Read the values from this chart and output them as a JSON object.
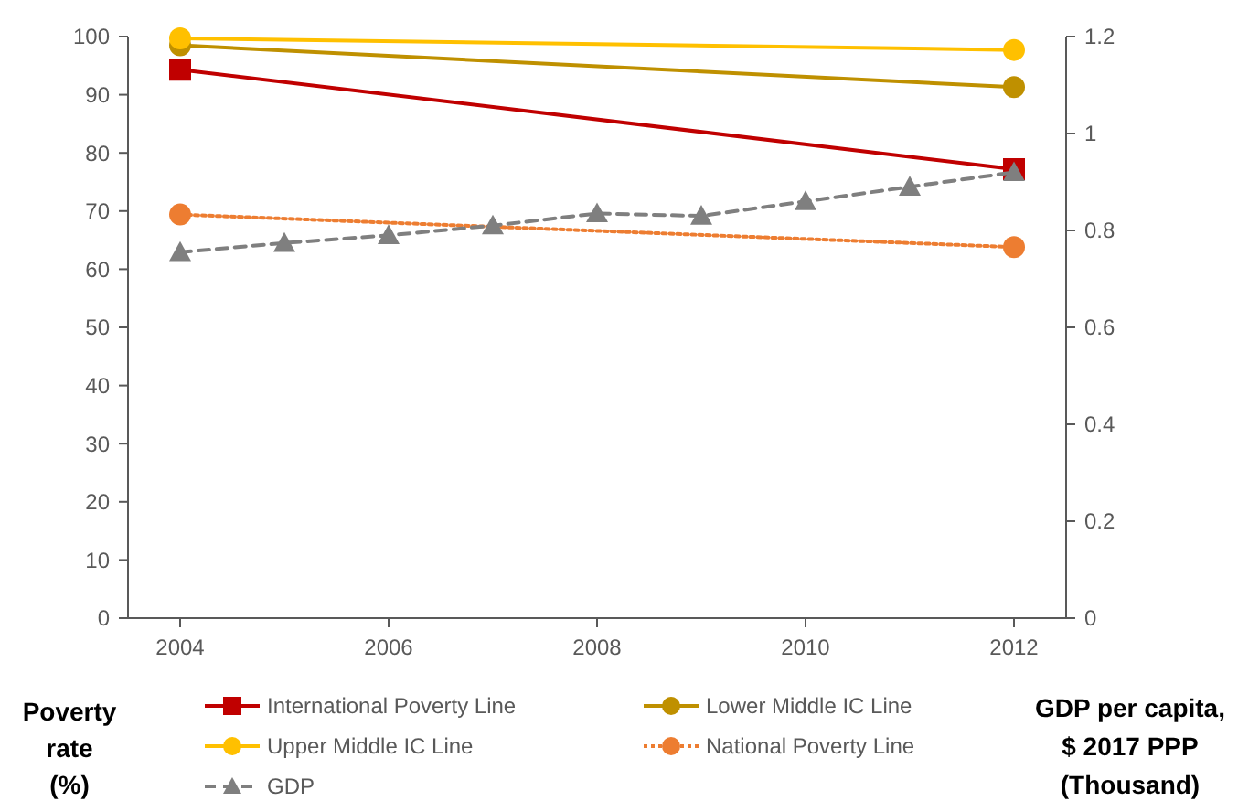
{
  "chart_data": {
    "type": "line",
    "x": [
      2004,
      2012
    ],
    "xlim": [
      2003.5,
      2012.5
    ],
    "xticks": [
      2004,
      2006,
      2008,
      2010,
      2012
    ],
    "ylim": [
      0,
      100
    ],
    "yticks": [
      0,
      10,
      20,
      30,
      40,
      50,
      60,
      70,
      80,
      90,
      100
    ],
    "y2lim": [
      0,
      1.2
    ],
    "y2ticks": [
      0,
      0.2,
      0.4,
      0.6,
      0.8,
      1,
      1.2
    ],
    "ylabel": "Poverty\nrate\n(%)",
    "y2label": "GDP per capita,\n$ 2017 PPP\n(Thousand)",
    "legend": "bottom",
    "grid": false,
    "series": [
      {
        "name": "International Poverty Line",
        "color": "#c00000",
        "values": [
          94.3,
          77.2
        ],
        "marker": "square",
        "line_style": "solid"
      },
      {
        "name": "Lower Middle IC Line",
        "color": "#bf9000",
        "values": [
          98.5,
          91.3
        ],
        "marker": "circle",
        "line_style": "solid"
      },
      {
        "name": "Upper Middle IC Line",
        "color": "#ffc000",
        "values": [
          99.7,
          97.7
        ],
        "marker": "circle",
        "line_style": "solid"
      },
      {
        "name": "National Poverty Line",
        "color": "#ed7d31",
        "values": [
          69.4,
          63.8
        ],
        "marker": "circle",
        "line_style": "dotted"
      },
      {
        "name": "GDP",
        "color": "#7f7f7f",
        "axis": "y2",
        "x": [
          2004,
          2005,
          2006,
          2007,
          2008,
          2009,
          2010,
          2011,
          2012
        ],
        "values": [
          0.755,
          0.774,
          0.79,
          0.81,
          0.835,
          0.83,
          0.86,
          0.89,
          0.92
        ],
        "marker": "triangle",
        "line_style": "dashed"
      }
    ]
  }
}
